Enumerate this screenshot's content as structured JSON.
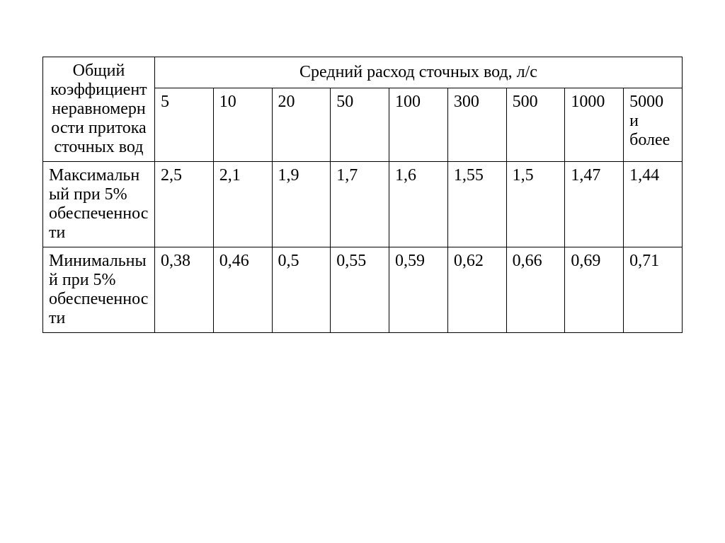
{
  "table": {
    "type": "table",
    "column_count": 10,
    "first_column_header": "Общий коэффициент неравномерности притока сточных вод",
    "spanning_header": "Средний расход сточных вод, л/с",
    "flow_columns": [
      "5",
      "10",
      "20",
      "50",
      "100",
      "300",
      "500",
      "1000",
      "5000 и более"
    ],
    "rows": [
      {
        "label": "Максимальный при 5% обеспеченности",
        "values": [
          "2,5",
          "2,1",
          "1,9",
          "1,7",
          "1,6",
          "1,55",
          "1,5",
          "1,47",
          "1,44"
        ]
      },
      {
        "label": "Минимальный при 5% обеспеченности",
        "values": [
          "0,38",
          "0,46",
          "0,5",
          "0,55",
          "0,59",
          "0,62",
          "0,66",
          "0,69",
          "0,71"
        ]
      }
    ],
    "border_color": "#000000",
    "text_color": "#000000",
    "background_color": "#ffffff",
    "font_family": "Times New Roman",
    "cell_fontsize": 24,
    "first_col_width_pct": 17.5,
    "data_col_width_pct": 9.17,
    "border_width": 1.5
  }
}
